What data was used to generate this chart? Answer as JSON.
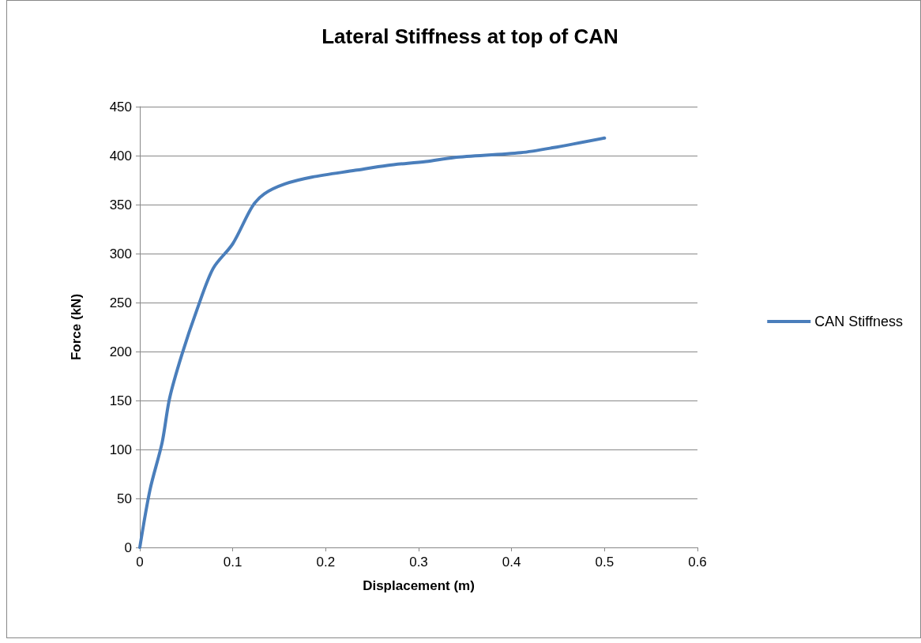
{
  "chart_data": {
    "type": "line",
    "title": "Lateral Stiffness at top of CAN",
    "xlabel": "Displacement (m)",
    "ylabel": "Force (kN)",
    "x": [
      0,
      0.011,
      0.024,
      0.032,
      0.045,
      0.062,
      0.079,
      0.1,
      0.121,
      0.134,
      0.156,
      0.185,
      0.232,
      0.266,
      0.308,
      0.338,
      0.41,
      0.444,
      0.5
    ],
    "series": [
      {
        "name": "CAN Stiffness",
        "color": "#4a7ebb",
        "values": [
          0,
          59,
          107,
          152,
          196,
          244,
          285,
          310,
          348,
          361,
          371,
          378,
          385,
          390,
          394,
          398,
          403,
          408,
          418
        ]
      }
    ],
    "xlim": [
      0,
      0.6
    ],
    "xticks": [
      0,
      0.1,
      0.2,
      0.3,
      0.4,
      0.5,
      0.6
    ],
    "ylim": [
      0,
      450
    ],
    "yticks": [
      0,
      50,
      100,
      150,
      200,
      250,
      300,
      350,
      400,
      450
    ],
    "grid": "y",
    "legend": "right",
    "marker": "none",
    "line_style": "solid"
  }
}
